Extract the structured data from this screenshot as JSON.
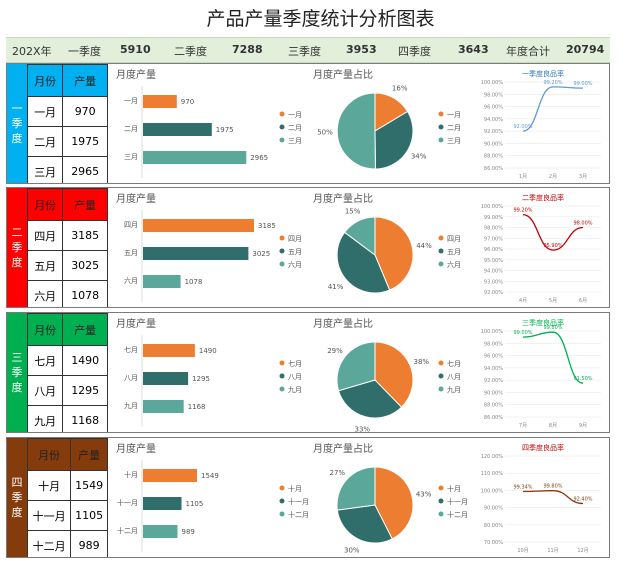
{
  "title": "产品产量季度统计分析图表",
  "summary": {
    "year_label": "202X年",
    "q1_label": "一季度",
    "q1_value": "5910",
    "q2_label": "二季度",
    "q2_value": "7288",
    "q3_label": "三季度",
    "q3_value": "3953",
    "q4_label": "四季度",
    "q4_value": "3643",
    "total_label": "年度合计",
    "total_value": "20794"
  },
  "sections": [
    {
      "quarter_label": "一季度",
      "header_color": "#00b0f0",
      "label_bg": "#00b0f0",
      "table_header": {
        "month": "月份",
        "output": "产量"
      },
      "rows": [
        {
          "month": "一月",
          "output": "970"
        },
        {
          "month": "二月",
          "output": "1975"
        },
        {
          "month": "三月",
          "output": "2965"
        }
      ],
      "rate_title": "一季度良品率",
      "rate_title_color": "#2e75b6"
    },
    {
      "quarter_label": "二季度",
      "header_color": "#ff0000",
      "label_bg": "#ff0000",
      "table_header": {
        "month": "月份",
        "output": "产量"
      },
      "rows": [
        {
          "month": "四月",
          "output": "3185"
        },
        {
          "month": "五月",
          "output": "3025"
        },
        {
          "month": "六月",
          "output": "1078"
        }
      ],
      "rate_title": "二季度良品率",
      "rate_title_color": "#c00000"
    },
    {
      "quarter_label": "三季度",
      "header_color": "#00b050",
      "label_bg": "#00b050",
      "table_header": {
        "month": "月份",
        "output": "产量"
      },
      "rows": [
        {
          "month": "七月",
          "output": "1490"
        },
        {
          "month": "八月",
          "output": "1295"
        },
        {
          "month": "九月",
          "output": "1168"
        }
      ],
      "rate_title": "三季度良品率",
      "rate_title_color": "#00b050"
    },
    {
      "quarter_label": "四季度",
      "header_color": "#843c0c",
      "label_bg": "#843c0c",
      "table_header": {
        "month": "月份",
        "output": "产量"
      },
      "rows": [
        {
          "month": "十月",
          "output": "1549"
        },
        {
          "month": "十一月",
          "output": "1105"
        },
        {
          "month": "十二月",
          "output": "989"
        }
      ],
      "rate_title": "四季度良品率",
      "rate_title_color": "#c00000"
    }
  ],
  "colors": {
    "orange": "#ed7d31",
    "dark_teal": "#2f6e6a",
    "teal": "#5ba89b"
  },
  "chart_data": [
    {
      "type": "bar",
      "title": "月度产量",
      "categories": [
        "一月",
        "二月",
        "三月"
      ],
      "values": [
        970,
        1975,
        2965
      ]
    },
    {
      "type": "pie",
      "title": "月度产量占比",
      "labels": [
        "一月",
        "二月",
        "三月"
      ],
      "values": [
        970,
        1975,
        2965
      ],
      "percent_labels": [
        "16%",
        "34%",
        "50%"
      ]
    },
    {
      "type": "line",
      "title": "一季度良品率",
      "x": [
        "1月",
        "2月",
        "3月"
      ],
      "values": [
        92.0,
        99.2,
        99.0
      ],
      "data_labels": [
        "92.00%",
        "99.20%",
        "99.00%"
      ],
      "ylim": [
        86,
        100
      ],
      "yticks": [
        "86.00%",
        "88.00%",
        "90.00%",
        "92.00%",
        "94.00%",
        "96.00%",
        "98.00%",
        "100.00%"
      ],
      "color": "#5b9bd5"
    },
    {
      "type": "bar",
      "title": "月度产量",
      "categories": [
        "四月",
        "五月",
        "六月"
      ],
      "values": [
        3185,
        3025,
        1078
      ]
    },
    {
      "type": "pie",
      "title": "月度产量占比",
      "labels": [
        "四月",
        "五月",
        "六月"
      ],
      "values": [
        3185,
        3025,
        1078
      ],
      "percent_labels": [
        "44%",
        "41%",
        "15%"
      ]
    },
    {
      "type": "line",
      "title": "二季度良品率",
      "x": [
        "4月",
        "5月",
        "6月"
      ],
      "values": [
        99.2,
        95.9,
        98.0
      ],
      "data_labels": [
        "99.20%",
        "95.90%",
        "98.00%"
      ],
      "ylim": [
        92,
        100
      ],
      "yticks": [
        "92.00%",
        "93.00%",
        "94.00%",
        "95.00%",
        "96.00%",
        "97.00%",
        "98.00%",
        "99.00%",
        "100.00%"
      ],
      "color": "#c00000"
    },
    {
      "type": "bar",
      "title": "月度产量",
      "categories": [
        "七月",
        "八月",
        "九月"
      ],
      "values": [
        1490,
        1295,
        1168
      ]
    },
    {
      "type": "pie",
      "title": "月度产量占比",
      "labels": [
        "七月",
        "八月",
        "九月"
      ],
      "values": [
        1490,
        1295,
        1168
      ],
      "percent_labels": [
        "38%",
        "33%",
        "29%"
      ]
    },
    {
      "type": "line",
      "title": "三季度良品率",
      "x": [
        "7月",
        "8月",
        "9月"
      ],
      "values": [
        99.0,
        99.8,
        91.5
      ],
      "data_labels": [
        "99.00%",
        "99.80%",
        "91.50%"
      ],
      "ylim": [
        86,
        100
      ],
      "yticks": [
        "86.00%",
        "88.00%",
        "90.00%",
        "92.00%",
        "94.00%",
        "96.00%",
        "98.00%",
        "100.00%"
      ],
      "color": "#00b050"
    },
    {
      "type": "bar",
      "title": "月度产量",
      "categories": [
        "十月",
        "十一月",
        "十二月"
      ],
      "values": [
        1549,
        1105,
        989
      ]
    },
    {
      "type": "pie",
      "title": "月度产量占比",
      "labels": [
        "十月",
        "十一月",
        "十二月"
      ],
      "values": [
        1549,
        1105,
        989
      ],
      "percent_labels": [
        "43%",
        "30%",
        "27%"
      ]
    },
    {
      "type": "line",
      "title": "四季度良品率",
      "x": [
        "10月",
        "11月",
        "12月"
      ],
      "values": [
        99.34,
        99.8,
        92.4
      ],
      "data_labels": [
        "99.34%",
        "99.80%",
        "92.40%"
      ],
      "ylim": [
        70,
        120
      ],
      "yticks": [
        "70.00%",
        "80.00%",
        "90.00%",
        "100.00%",
        "110.00%",
        "120.00%"
      ],
      "color": "#843c0c"
    }
  ]
}
